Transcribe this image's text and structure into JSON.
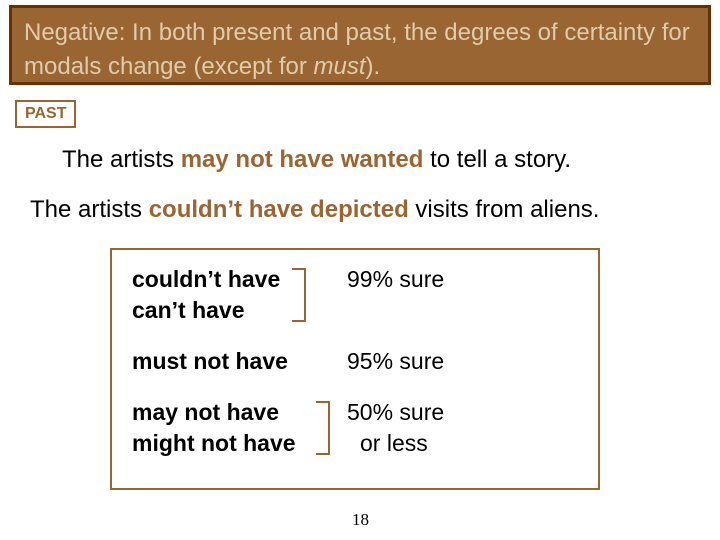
{
  "header": {
    "line": "Negative: In both present and past, the degrees of certainty for modals change (except for ",
    "italic_word": "must",
    "tail": ")."
  },
  "tag": {
    "label": "PAST"
  },
  "sentence1": {
    "pre": "The artists ",
    "em": "may not have wanted",
    "post": " to tell a story."
  },
  "sentence2": {
    "pre": "The artists ",
    "em": "couldn’t have depicted",
    "post": " visits from aliens."
  },
  "table": {
    "group1": {
      "items": [
        "couldn’t have",
        "can’t have"
      ],
      "certainty": "99% sure"
    },
    "group2": {
      "items": [
        "must not have"
      ],
      "certainty": "95% sure"
    },
    "group3": {
      "items": [
        "may not have",
        "might not have"
      ],
      "certainty_line1": "50% sure",
      "certainty_line2": "or less"
    }
  },
  "page_number": "18",
  "colors": {
    "accent": "#996633",
    "border_dark": "#663300",
    "header_text": "#e0ccaa"
  }
}
